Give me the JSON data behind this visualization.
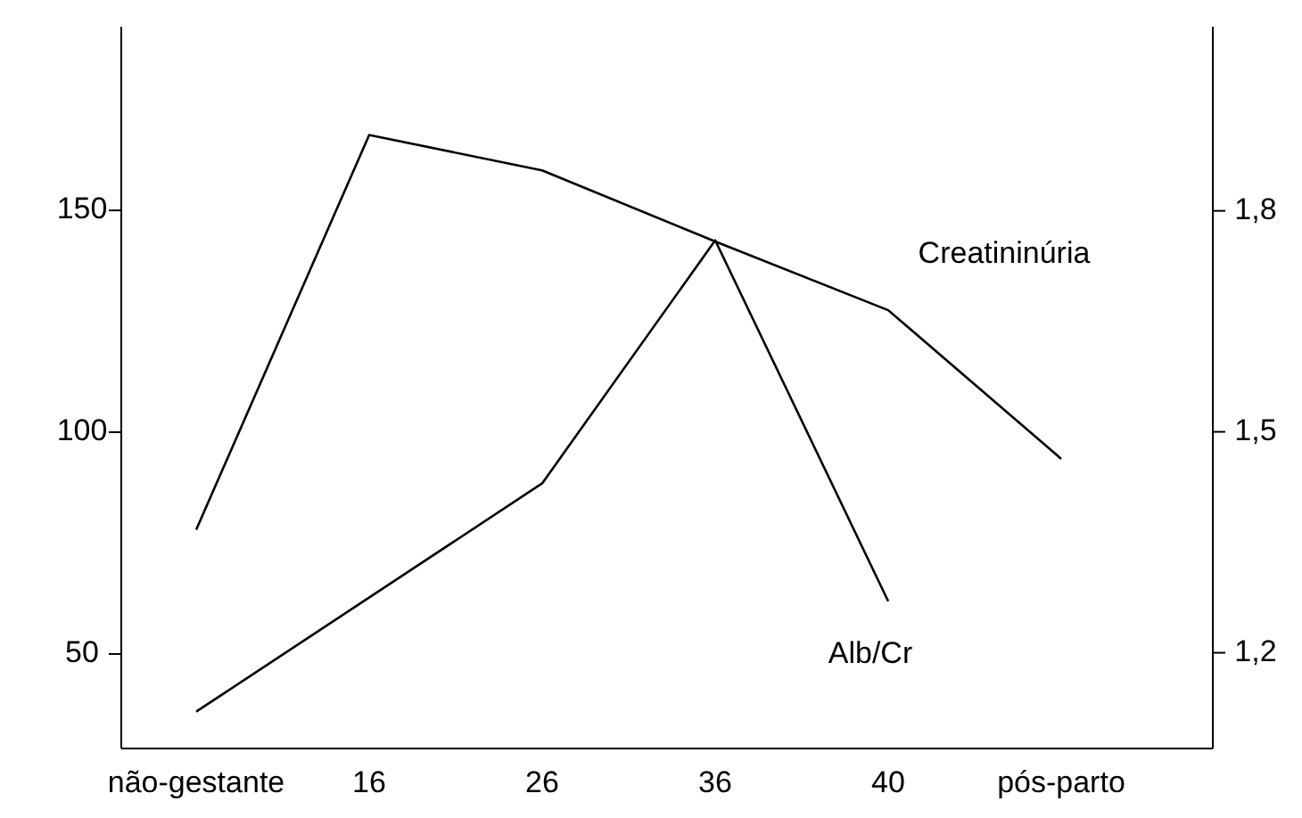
{
  "chart_data": {
    "type": "line",
    "categories": [
      "não-gestante",
      "16",
      "26",
      "36",
      "40",
      "pós-parto"
    ],
    "series": [
      {
        "name": "Creatininúria",
        "color": "#000000",
        "values": [
          78,
          167,
          159,
          143,
          127.5,
          94
        ]
      },
      {
        "name": "Alb/Cr",
        "color": "#000000",
        "axis": "y2",
        "values": [
          1.12,
          null,
          1.43,
          1.76,
          1.27,
          null
        ]
      }
    ],
    "ylim": [
      28.7,
      191.4
    ],
    "yticks": [
      50,
      100,
      150
    ],
    "y2lim": [
      1.07,
      2.05
    ],
    "y2ticks": [
      {
        "value": 1.2,
        "label": "1,2"
      },
      {
        "value": 1.5,
        "label": "1,5"
      },
      {
        "value": 1.8,
        "label": "1,8"
      }
    ],
    "grid": false,
    "legend": false,
    "marker": "none",
    "line_style": "solid"
  }
}
